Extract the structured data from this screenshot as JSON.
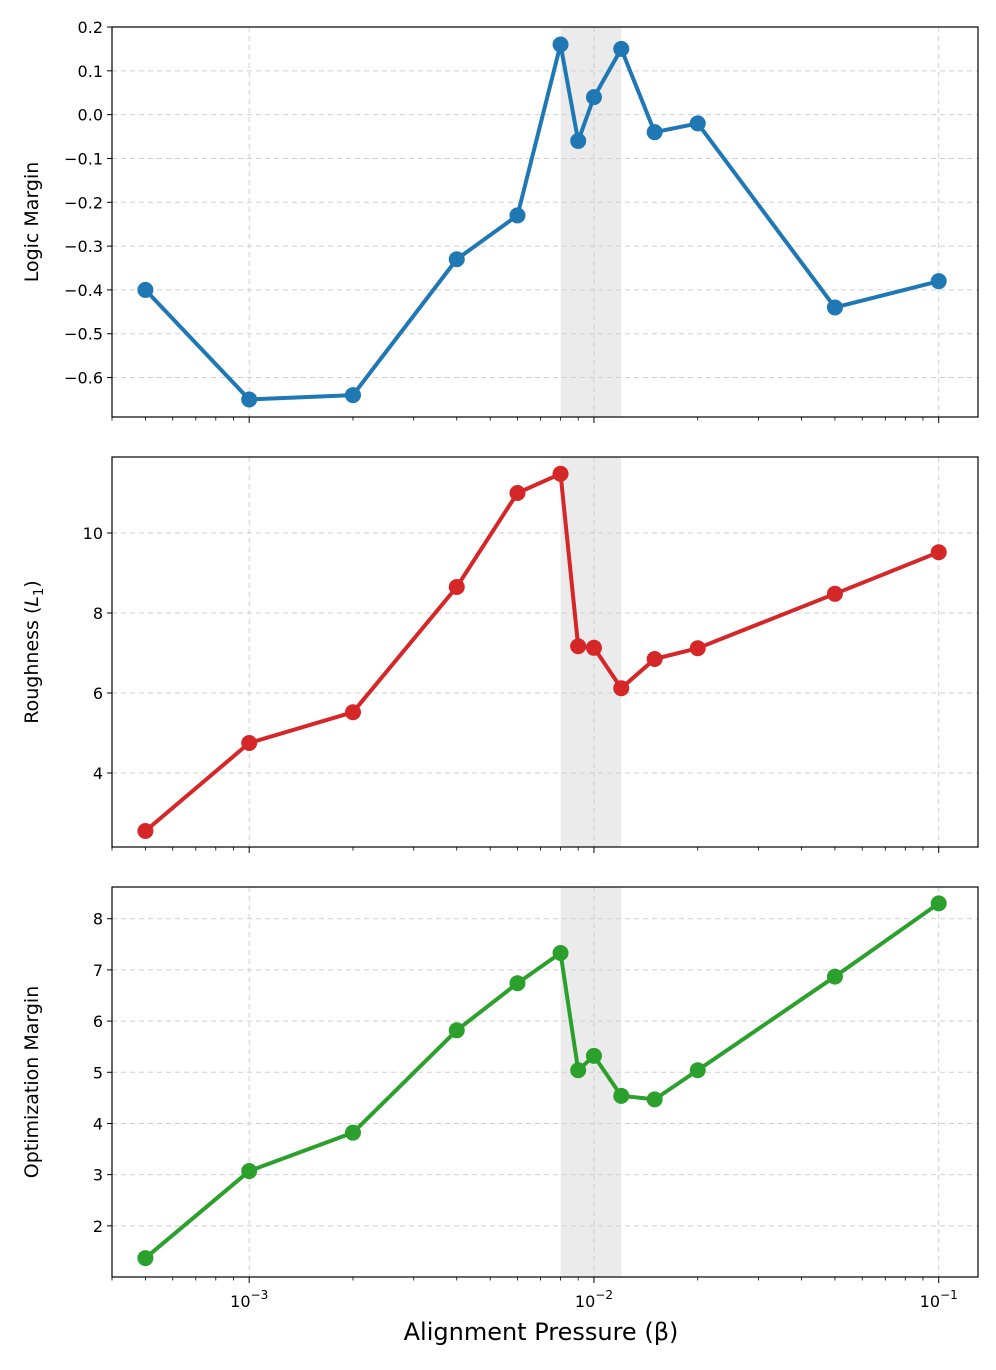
{
  "figure": {
    "xlabel": "Alignment Pressure (β)",
    "x_scale": "log",
    "xlim": [
      0.0004,
      0.13
    ],
    "x_tick_labels": [
      {
        "value": 0.001,
        "base": "10",
        "exp": "−3"
      },
      {
        "value": 0.01,
        "base": "10",
        "exp": "−2"
      },
      {
        "value": 0.1,
        "base": "10",
        "exp": "−1"
      }
    ],
    "highlight_band": {
      "x_start": 0.008,
      "x_end": 0.012,
      "color": "#ebebeb"
    },
    "grid": true
  },
  "chart_data": [
    {
      "type": "line",
      "name": "logic-margin",
      "ylabel": "Logic Margin",
      "ylabel_sub": "",
      "ylabel_suffix": "",
      "color": "#1f77b4",
      "ylim": [
        -0.69,
        0.2
      ],
      "yticks": [
        0.2,
        0.1,
        0.0,
        -0.1,
        -0.2,
        -0.3,
        -0.4,
        -0.5,
        -0.6
      ],
      "ytick_labels": [
        "0.2",
        "0.1",
        "0.0",
        "−0.1",
        "−0.2",
        "−0.3",
        "−0.4",
        "−0.5",
        "−0.6"
      ],
      "x": [
        0.0005,
        0.001,
        0.002,
        0.004,
        0.006,
        0.008,
        0.009,
        0.01,
        0.012,
        0.015,
        0.02,
        0.05,
        0.1
      ],
      "y": [
        -0.4,
        -0.65,
        -0.64,
        -0.33,
        -0.23,
        0.16,
        -0.06,
        0.04,
        0.15,
        -0.04,
        -0.02,
        -0.44,
        -0.38
      ]
    },
    {
      "type": "line",
      "name": "roughness",
      "ylabel": "Roughness (",
      "ylabel_sub": "1",
      "ylabel_suffix": ")",
      "color": "#d62728",
      "ylim": [
        2.15,
        11.9
      ],
      "yticks": [
        4,
        6,
        8,
        10
      ],
      "ytick_labels": [
        "4",
        "6",
        "8",
        "10"
      ],
      "x": [
        0.0005,
        0.001,
        0.002,
        0.004,
        0.006,
        0.008,
        0.009,
        0.01,
        0.012,
        0.015,
        0.02,
        0.05,
        0.1
      ],
      "y": [
        2.55,
        4.75,
        5.52,
        8.65,
        11.0,
        11.48,
        7.17,
        7.13,
        6.12,
        6.85,
        7.12,
        8.48,
        9.52
      ]
    },
    {
      "type": "line",
      "name": "optimization-margin",
      "ylabel": "Optimization Margin",
      "ylabel_sub": "",
      "ylabel_suffix": "",
      "color": "#2ca02c",
      "ylim": [
        1.0,
        8.62
      ],
      "yticks": [
        2,
        3,
        4,
        5,
        6,
        7,
        8
      ],
      "ytick_labels": [
        "2",
        "3",
        "4",
        "5",
        "6",
        "7",
        "8"
      ],
      "x": [
        0.0005,
        0.001,
        0.002,
        0.004,
        0.006,
        0.008,
        0.009,
        0.01,
        0.012,
        0.015,
        0.02,
        0.05,
        0.1
      ],
      "y": [
        1.37,
        3.07,
        3.82,
        5.82,
        6.74,
        7.33,
        5.04,
        5.32,
        4.54,
        4.47,
        5.04,
        6.87,
        8.3
      ]
    }
  ]
}
